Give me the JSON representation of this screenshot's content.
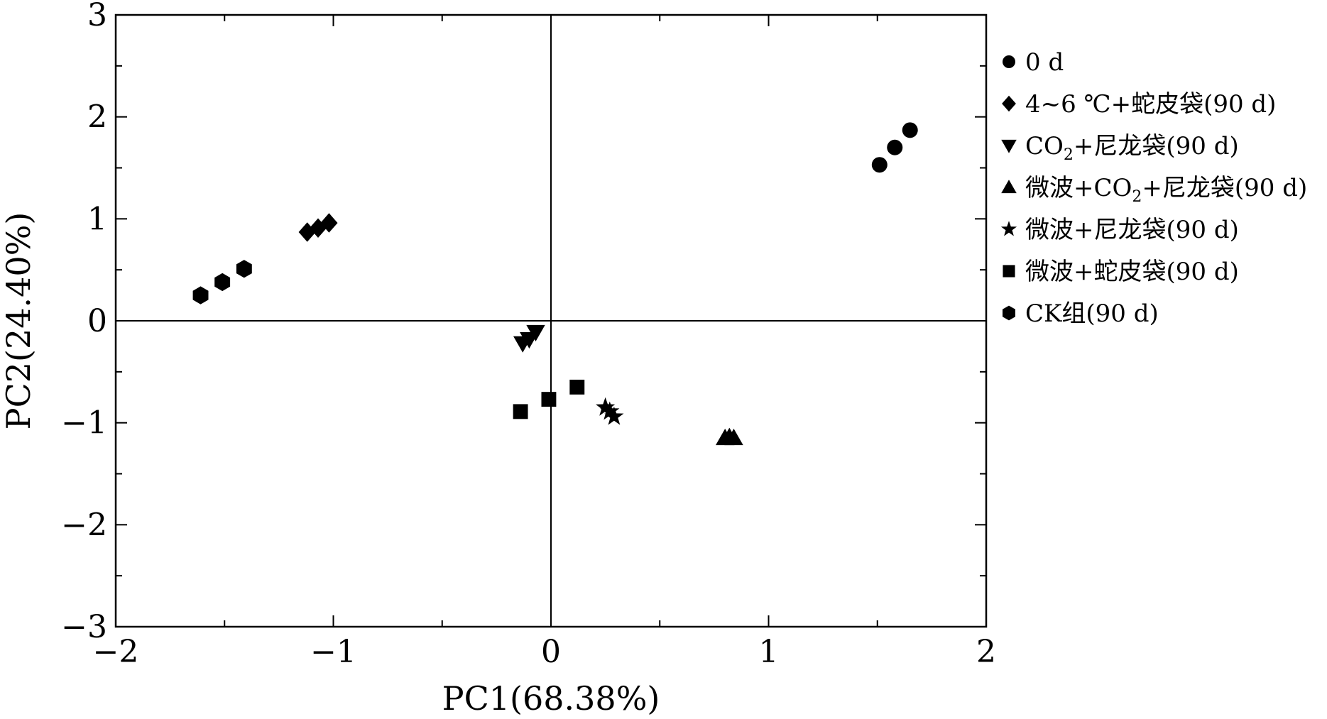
{
  "chart_data": {
    "type": "scatter",
    "xlabel": "PC1(68.38%)",
    "ylabel": "PC2(24.40%)",
    "xlim": [
      -2,
      2
    ],
    "ylim": [
      -3,
      3
    ],
    "x_ticks": [
      -2,
      -1,
      0,
      1,
      2
    ],
    "y_ticks": [
      -3,
      -2,
      -1,
      0,
      1,
      2,
      3
    ],
    "x_tick_labels": [
      "−2",
      "−1",
      "0",
      "1",
      "2"
    ],
    "y_tick_labels": [
      "−3",
      "−2",
      "−1",
      "0",
      "1",
      "2",
      "3"
    ],
    "grid": false,
    "zero_lines": true,
    "legend_position": "right",
    "series": [
      {
        "name": "0 d",
        "marker": "circle",
        "points": [
          [
            1.51,
            1.53
          ],
          [
            1.58,
            1.7
          ],
          [
            1.65,
            1.87
          ]
        ]
      },
      {
        "name": "4~6 ℃+蛇皮袋(90 d)",
        "marker": "diamond",
        "points": [
          [
            -1.12,
            0.87
          ],
          [
            -1.07,
            0.91
          ],
          [
            -1.02,
            0.96
          ]
        ]
      },
      {
        "name": "CO2+尼龙袋(90 d)",
        "marker": "triangle-down",
        "points": [
          [
            -0.13,
            -0.22
          ],
          [
            -0.1,
            -0.18
          ],
          [
            -0.07,
            -0.11
          ]
        ]
      },
      {
        "name": "微波+CO2+尼龙袋(90 d)",
        "marker": "triangle-up",
        "points": [
          [
            0.8,
            -1.15
          ],
          [
            0.82,
            -1.14
          ],
          [
            0.84,
            -1.15
          ]
        ]
      },
      {
        "name": "微波+尼龙袋(90 d)",
        "marker": "star",
        "points": [
          [
            0.25,
            -0.85
          ],
          [
            0.27,
            -0.89
          ],
          [
            0.29,
            -0.94
          ]
        ]
      },
      {
        "name": "微波+蛇皮袋(90 d)",
        "marker": "square",
        "points": [
          [
            -0.14,
            -0.89
          ],
          [
            -0.01,
            -0.77
          ],
          [
            0.12,
            -0.65
          ]
        ]
      },
      {
        "name": "CK组(90 d)",
        "marker": "hexagon",
        "points": [
          [
            -1.61,
            0.25
          ],
          [
            -1.51,
            0.38
          ],
          [
            -1.41,
            0.51
          ]
        ]
      }
    ],
    "marker_color": "#000000"
  }
}
